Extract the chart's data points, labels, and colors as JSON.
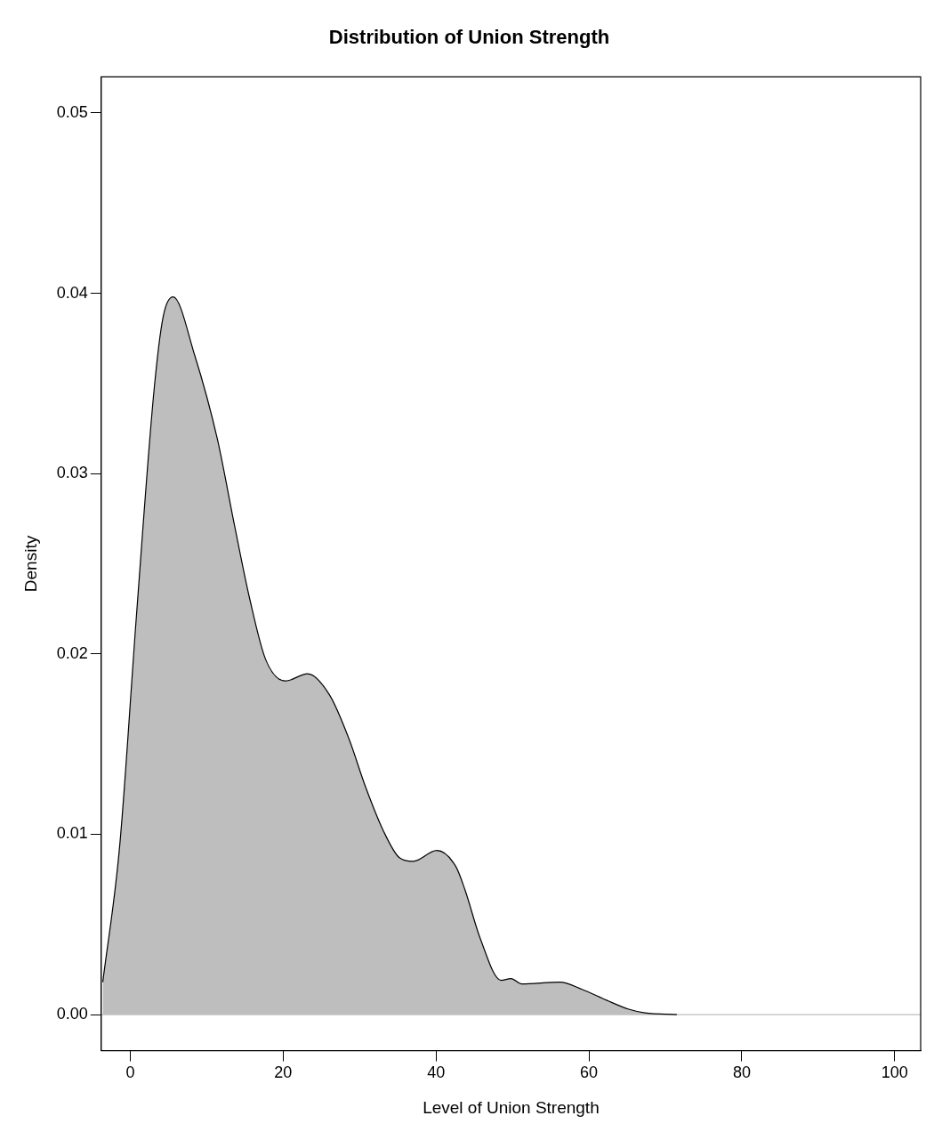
{
  "chart_data": {
    "type": "area",
    "title": "Distribution of Union Strength",
    "xlabel": "Level of Union Strength",
    "ylabel": "Density",
    "x": [
      -3.6,
      -1.4,
      0.8,
      3.1,
      4.3,
      5.6,
      8.4,
      11.4,
      13.6,
      15.6,
      17.7,
      20.3,
      23.2,
      26.1,
      28.6,
      30.8,
      33.1,
      35.2,
      37.0,
      40.1,
      42.6,
      43.8,
      45.8,
      48.5,
      49.8,
      51.2,
      56.2,
      59.1,
      62.3,
      65.2,
      67.3,
      71.5
    ],
    "series": [
      {
        "color": "#bebebe",
        "values": [
          0.0018,
          0.0093,
          0.0221,
          0.0346,
          0.0387,
          0.0398,
          0.0366,
          0.0319,
          0.0272,
          0.0231,
          0.0197,
          0.0185,
          0.0189,
          0.0177,
          0.0153,
          0.0126,
          0.0102,
          0.0087,
          0.0085,
          0.0091,
          0.0082,
          0.0069,
          0.0042,
          0.0019,
          0.002,
          0.0017,
          0.0018,
          0.0014,
          0.0008,
          0.0003,
          0.0001,
          0
        ]
      }
    ],
    "xlim": [
      -3.8,
      103.4
    ],
    "ylim": [
      -0.002,
      0.052
    ],
    "xticks": [
      0,
      20,
      40,
      60,
      80,
      100
    ],
    "yticks": [
      {
        "value": 0,
        "label": "0.00"
      },
      0.01,
      0.02,
      0.03,
      0.04,
      0.05
    ],
    "ref_lines": [
      {
        "axis": "y",
        "value": 0,
        "color": "#bebebe"
      }
    ],
    "grid": false,
    "legend": false
  }
}
